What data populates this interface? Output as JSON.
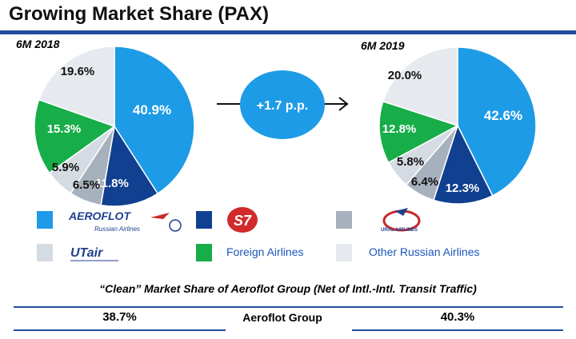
{
  "header": {
    "title": "Growing Market Share (PAX)"
  },
  "change_label": "+1.7 p.p.",
  "chart_data": [
    {
      "type": "pie",
      "title": "6M 2018",
      "slices": [
        {
          "name": "Aeroflot",
          "value": 40.9,
          "label": "40.9%",
          "color": "#1e9be6"
        },
        {
          "name": "S7",
          "value": 11.8,
          "label": "11.8%",
          "color": "#10408f"
        },
        {
          "name": "Ural Airlines",
          "value": 6.5,
          "label": "6.5%",
          "color": "#a7b1bd"
        },
        {
          "name": "UTair",
          "value": 5.9,
          "label": "5.9%",
          "color": "#d5dbe2"
        },
        {
          "name": "Foreign Airlines",
          "value": 15.3,
          "label": "15.3%",
          "color": "#17ad48"
        },
        {
          "name": "Other Russian Airlines",
          "value": 19.6,
          "label": "19.6%",
          "color": "#e6e9ee"
        }
      ]
    },
    {
      "type": "pie",
      "title": "6M 2019",
      "slices": [
        {
          "name": "Aeroflot",
          "value": 42.6,
          "label": "42.6%",
          "color": "#1e9be6"
        },
        {
          "name": "S7",
          "value": 12.3,
          "label": "12.3%",
          "color": "#10408f"
        },
        {
          "name": "Ural Airlines",
          "value": 6.4,
          "label": "6.4%",
          "color": "#a7b1bd"
        },
        {
          "name": "UTair",
          "value": 5.8,
          "label": "5.8%",
          "color": "#d5dbe2"
        },
        {
          "name": "Foreign Airlines",
          "value": 12.8,
          "label": "12.8%",
          "color": "#17ad48"
        },
        {
          "name": "Other Russian Airlines",
          "value": 20.0,
          "label": "20.0%",
          "color": "#e6e9ee"
        }
      ]
    }
  ],
  "legend": {
    "aeroflot_logo_text": "AEROFLOT",
    "aeroflot_logo_subtext": "Russian Airlines",
    "s7_logo_text": "S7",
    "ural_logo_text": "URAL AIRLINES",
    "utair_logo_text": "UTair",
    "foreign": "Foreign Airlines",
    "other": "Other Russian Airlines"
  },
  "clean_share": {
    "title": "“Clean” Market Share of Aeroflot Group (Net of Intl.-Intl. Transit Traffic)",
    "value_2018": "38.7%",
    "label": "Aeroflot Group",
    "value_2019": "40.3%"
  }
}
